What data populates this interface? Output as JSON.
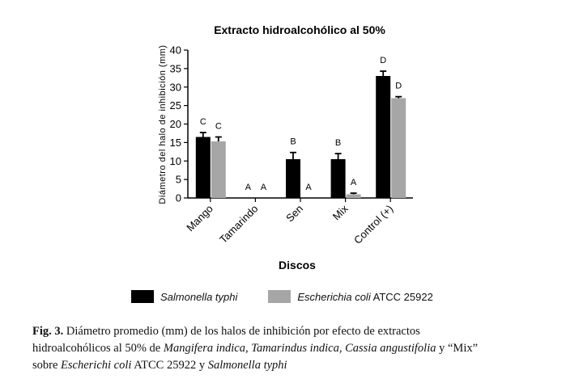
{
  "chart_data": {
    "type": "bar",
    "title": "Extracto hidroalcohólico al 50%",
    "xlabel": "Discos",
    "ylabel": "Diámetro del halo de inhibición (mm)",
    "ylim": [
      0,
      40
    ],
    "yticks": [
      0,
      5,
      10,
      15,
      20,
      25,
      30,
      35,
      40
    ],
    "categories": [
      "Mango",
      "Tamarindo",
      "Sen",
      "Mix",
      "Control (+)"
    ],
    "series": [
      {
        "name": "Salmonella typhi",
        "color": "#000000",
        "values": [
          16.5,
          0,
          10.5,
          10.5,
          33
        ],
        "errors": [
          1.2,
          0,
          1.8,
          1.5,
          1.3
        ],
        "letters": [
          "C",
          "A",
          "B",
          "B",
          "D"
        ]
      },
      {
        "name": "Escherichia coli ATCC 25922",
        "color": "#a6a6a6",
        "values": [
          15.3,
          0,
          0,
          1,
          27
        ],
        "errors": [
          1.2,
          0,
          0,
          0.3,
          0.4
        ],
        "letters": [
          "C",
          "A",
          "A",
          "A",
          "D"
        ]
      }
    ],
    "grid": false,
    "legend_position": "bottom"
  },
  "legend": {
    "item1": "Salmonella typhi",
    "item2_italic": "Escherichia coli",
    "item2_rest": " ATCC 25922"
  },
  "caption": {
    "line1_label": "Fig. 3.",
    "line1_text": " Diámetro promedio (mm) de los halos de inhibición por efecto de extractos",
    "line2_a": "hidroalcohólicos al 50% de ",
    "line2_b": "Mangifera indica, Tamarindus indica, Cassia angustifolia",
    "line2_c": " y “Mix”",
    "line3_a": "sobre ",
    "line3_b": "Escherichi coli",
    "line3_c": " ATCC 25922 y ",
    "line3_d": "Salmonella typhi"
  }
}
